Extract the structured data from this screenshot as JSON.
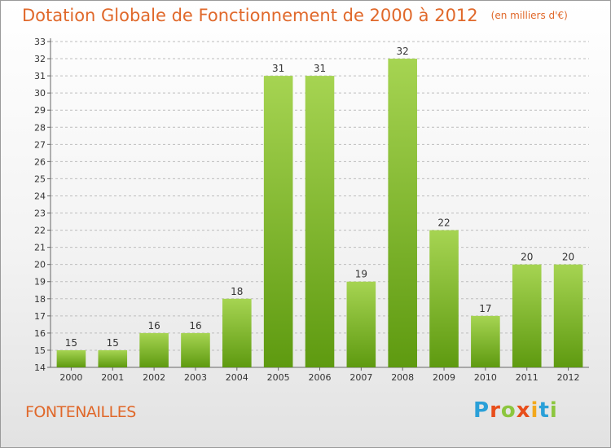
{
  "header": {
    "title": "Dotation Globale de Fonctionnement de 2000 à 2012",
    "unit": "(en milliers d'€)"
  },
  "footer": {
    "place": "FONTENAILLES",
    "logo": "Proxiti"
  },
  "colors": {
    "title": "#e0682a",
    "bar_top": "#a6d452",
    "bar_bottom": "#5e9a10",
    "grid": "#bdbdbd"
  },
  "chart_data": {
    "type": "bar",
    "title": "Dotation Globale de Fonctionnement de 2000 à 2012",
    "subtitle": "(en milliers d'€)",
    "xlabel": "",
    "ylabel": "",
    "categories": [
      "2000",
      "2001",
      "2002",
      "2003",
      "2004",
      "2005",
      "2006",
      "2007",
      "2008",
      "2009",
      "2010",
      "2011",
      "2012"
    ],
    "values": [
      15,
      15,
      16,
      16,
      18,
      31,
      31,
      19,
      32,
      22,
      17,
      20,
      20
    ],
    "ylim": [
      14,
      33
    ],
    "ytick_step": 1,
    "grid": "horizontal dashed",
    "data_labels": true,
    "legend": "none"
  }
}
